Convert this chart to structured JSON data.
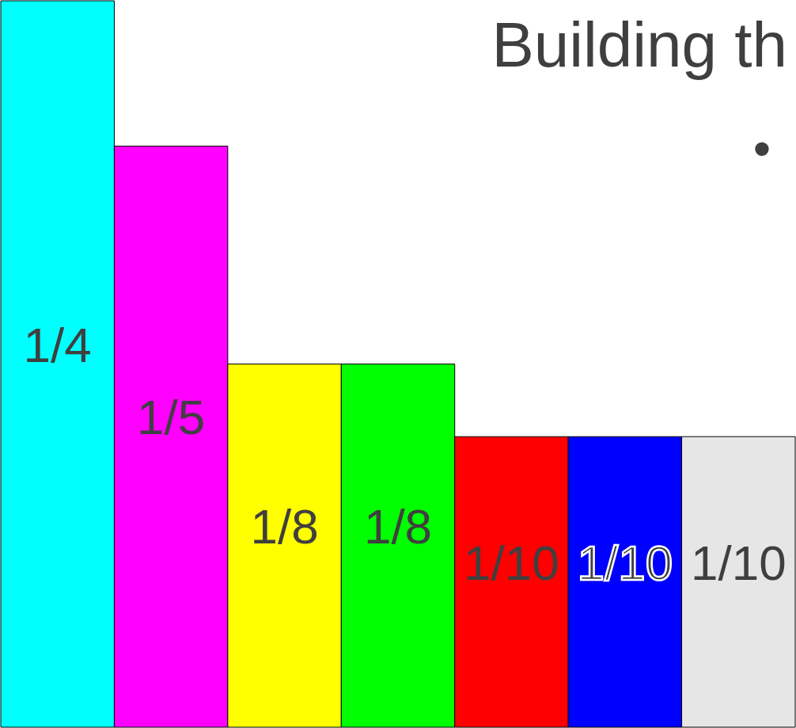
{
  "chart_data": {
    "type": "bar",
    "title": "Building th",
    "categories": [
      null,
      null,
      null,
      null,
      null,
      null,
      null
    ],
    "values": [
      0.25,
      0.2,
      0.125,
      0.125,
      0.1,
      0.1,
      0.1
    ],
    "value_labels": [
      "1/4",
      "1/5",
      "1/8",
      "1/8",
      "1/10",
      "1/10",
      "1/10"
    ],
    "colors": [
      "#00ffff",
      "#ff00ff",
      "#ffff00",
      "#00ff00",
      "#ff0000",
      "#0000ff",
      "#e6e6e6"
    ],
    "annotations": [
      "•"
    ]
  }
}
